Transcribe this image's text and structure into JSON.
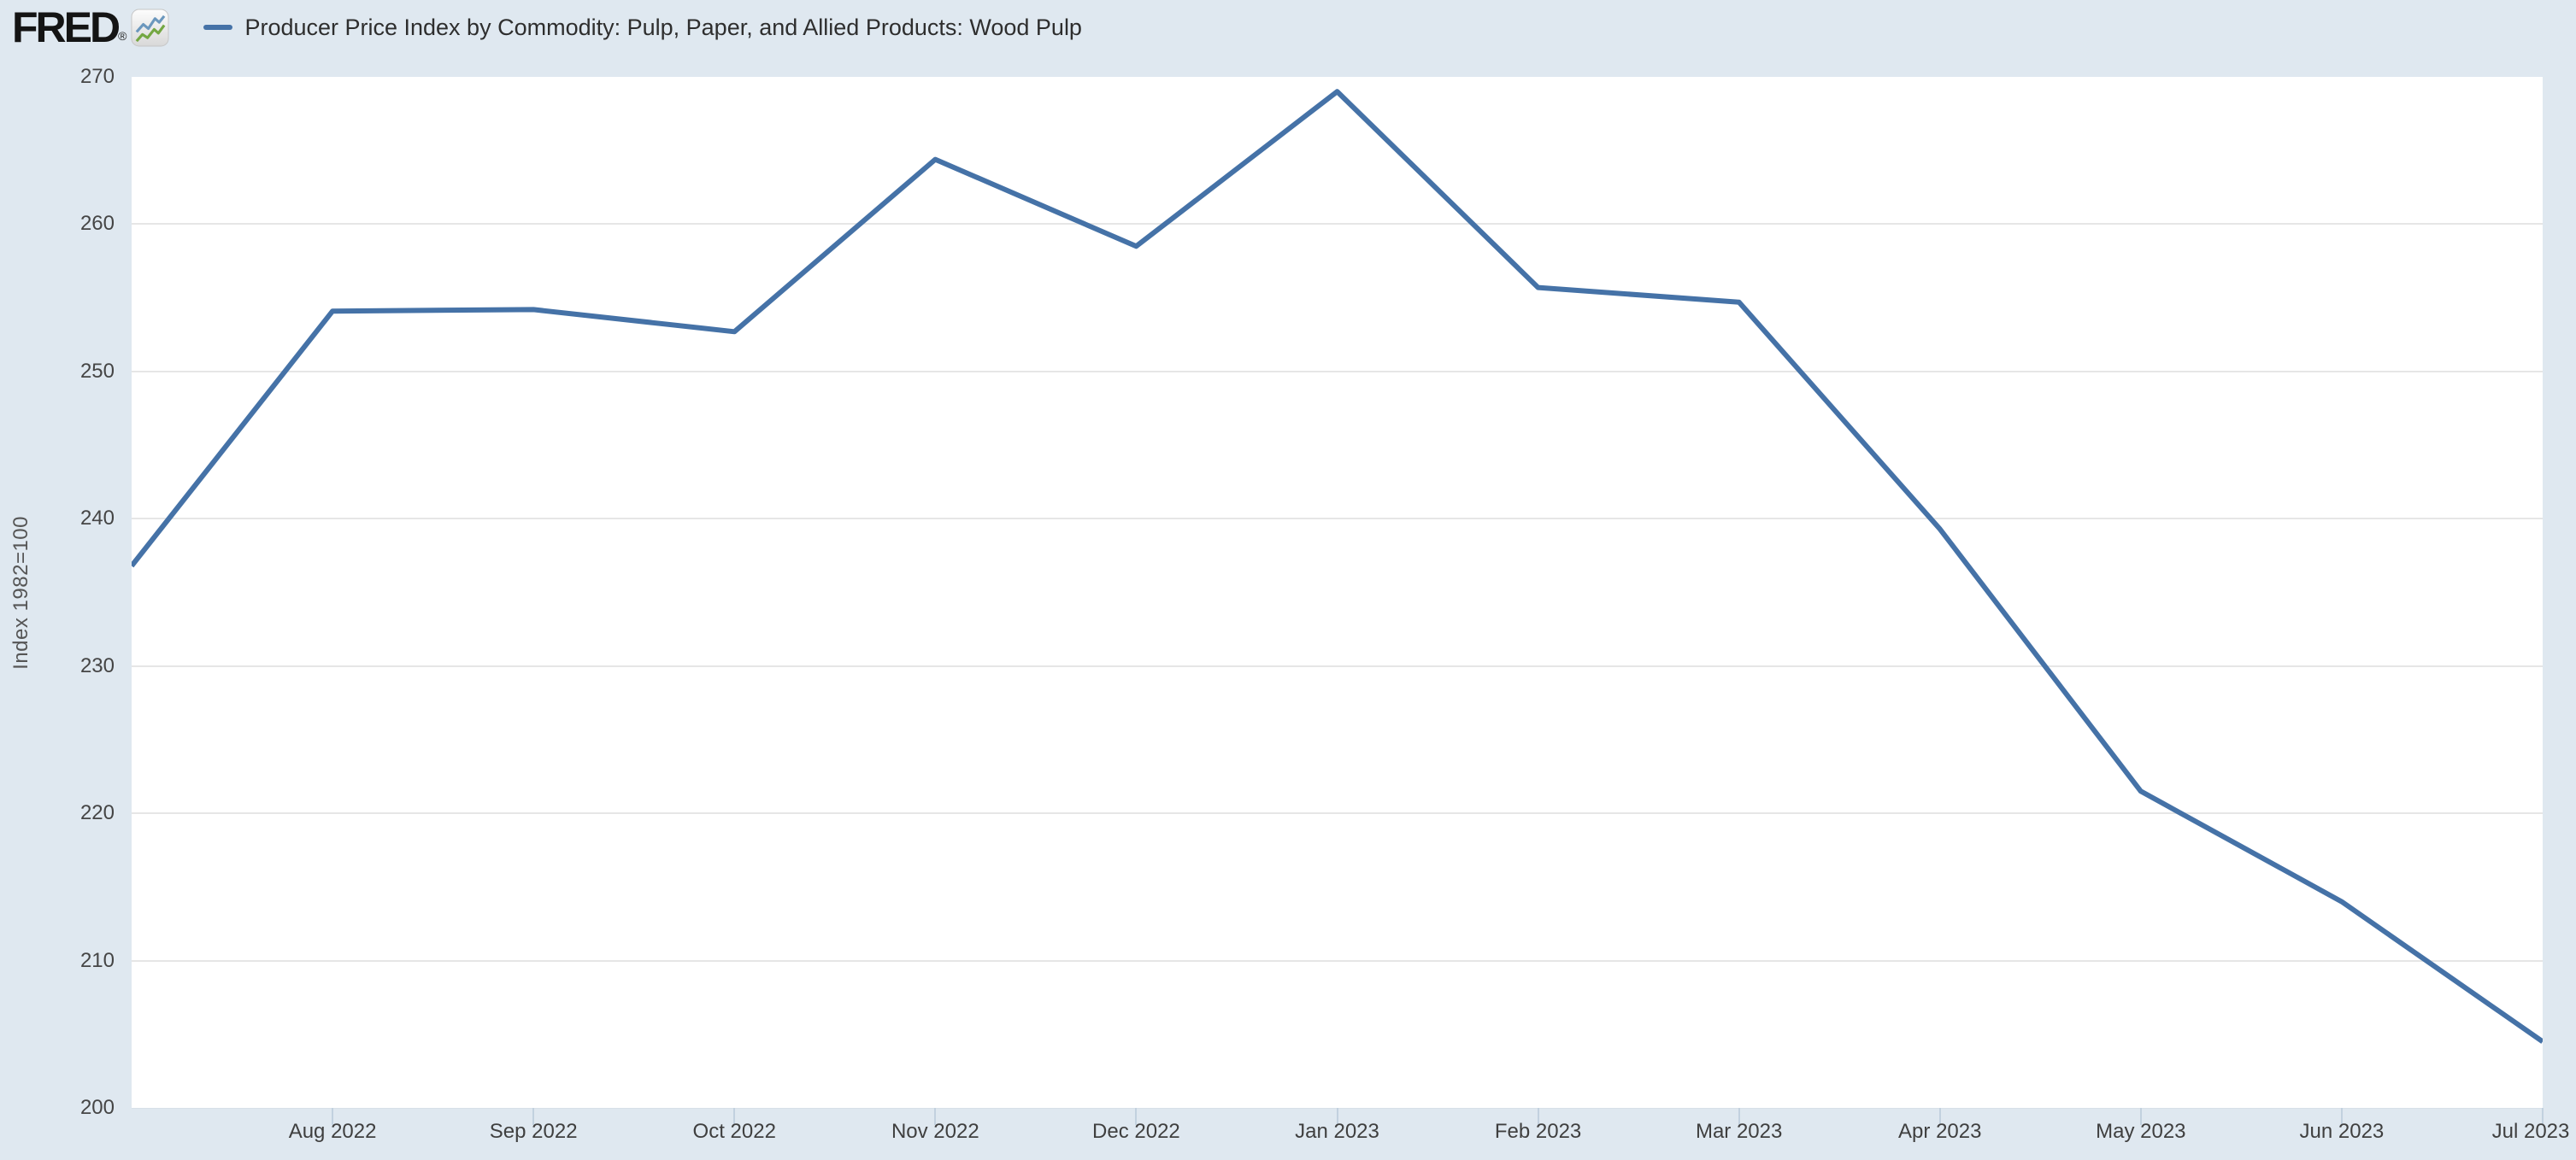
{
  "header": {
    "logo_text": "FRED",
    "logo_registered": "®",
    "legend": {
      "series_label": "Producer Price Index by Commodity: Pulp, Paper, and Allied Products: Wood Pulp",
      "series_color": "#4572a7"
    }
  },
  "y_axis": {
    "title": "Index 1982=100",
    "ticks": [
      270,
      260,
      250,
      240,
      230,
      220,
      210,
      200
    ]
  },
  "x_axis": {
    "tick_labels": [
      "Aug 2022",
      "Sep 2022",
      "Oct 2022",
      "Nov 2022",
      "Dec 2022",
      "Jan 2023",
      "Feb 2023",
      "Mar 2023",
      "Apr 2023",
      "May 2023",
      "Jun 2023",
      "Jul 2023"
    ]
  },
  "chart_data": {
    "type": "line",
    "title": "Producer Price Index by Commodity: Pulp, Paper, and Allied Products: Wood Pulp",
    "x": [
      "Jul 2022",
      "Aug 2022",
      "Sep 2022",
      "Oct 2022",
      "Nov 2022",
      "Dec 2022",
      "Jan 2023",
      "Feb 2023",
      "Mar 2023",
      "Apr 2023",
      "May 2023",
      "Jun 2023",
      "Jul 2023"
    ],
    "series": [
      {
        "name": "Producer Price Index by Commodity: Pulp, Paper, and Allied Products: Wood Pulp",
        "color": "#4572a7",
        "values": [
          236.8,
          254.1,
          254.2,
          252.7,
          264.4,
          258.5,
          269.0,
          255.7,
          254.7,
          239.3,
          221.5,
          214.0,
          204.5
        ]
      }
    ],
    "xlabel": "",
    "ylabel": "Index 1982=100",
    "ylim": [
      200,
      270
    ],
    "grid": "horizontal",
    "legend_position": "top-left"
  },
  "colors": {
    "page_background": "#dfe8f0",
    "plot_background": "#ffffff",
    "gridline": "#e6e6e6",
    "tick_mark": "#c2d1df",
    "axis_text": "#454545",
    "legend_text": "#2e2e2e",
    "logo_sparkline_blue": "#6b97bd",
    "logo_sparkline_green": "#74a742"
  }
}
